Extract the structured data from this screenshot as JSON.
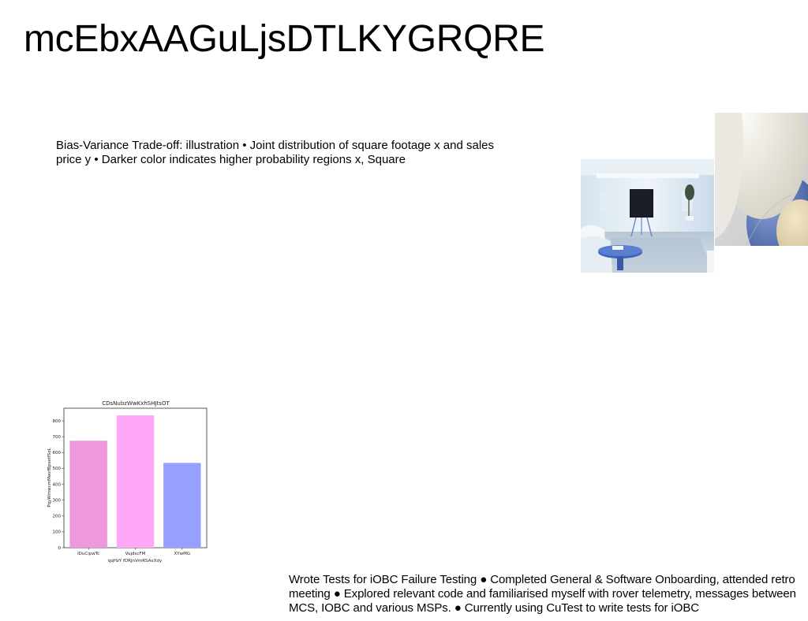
{
  "page": {
    "title": "mcEbxAAGuLjsDTLKYGRQRE"
  },
  "paragraphs": {
    "top": "Bias-Variance Trade-off: illustration • Joint distribution of square footage x and sales price y • Darker color indicates higher probability regions x, Square",
    "bottom": "Wrote Tests for iOBC Failure Testing ● Completed General & Software Onboarding, attended retro meeting ● Explored relevant code and familiarised myself with rover telemetry, messages between MCS, IOBC and various MSPs. ● Currently using CuTest to write tests for iOBC"
  },
  "images": {
    "room": "living-room-photo",
    "spheres": "abstract-spheres-photo"
  },
  "chart_data": {
    "type": "bar",
    "title": "CDsNubzWwKxhSHJtsOT",
    "xlabel": "qqHzY fDRJnVmRSAxXdy",
    "ylabel": "PqyWmwcmMwzfBpsetfSoL",
    "categories": [
      "lDuCipwTc",
      "VujdscFM",
      "XYwMG"
    ],
    "values": [
      675,
      835,
      535
    ],
    "colors": [
      "#ee99dd",
      "#ffa8f8",
      "#97a0ff"
    ],
    "yticks": [
      "0",
      "100",
      "200",
      "300",
      "400",
      "500",
      "600",
      "700",
      "800"
    ],
    "ylim": [
      0,
      880
    ],
    "grid": false,
    "legend": "none"
  }
}
